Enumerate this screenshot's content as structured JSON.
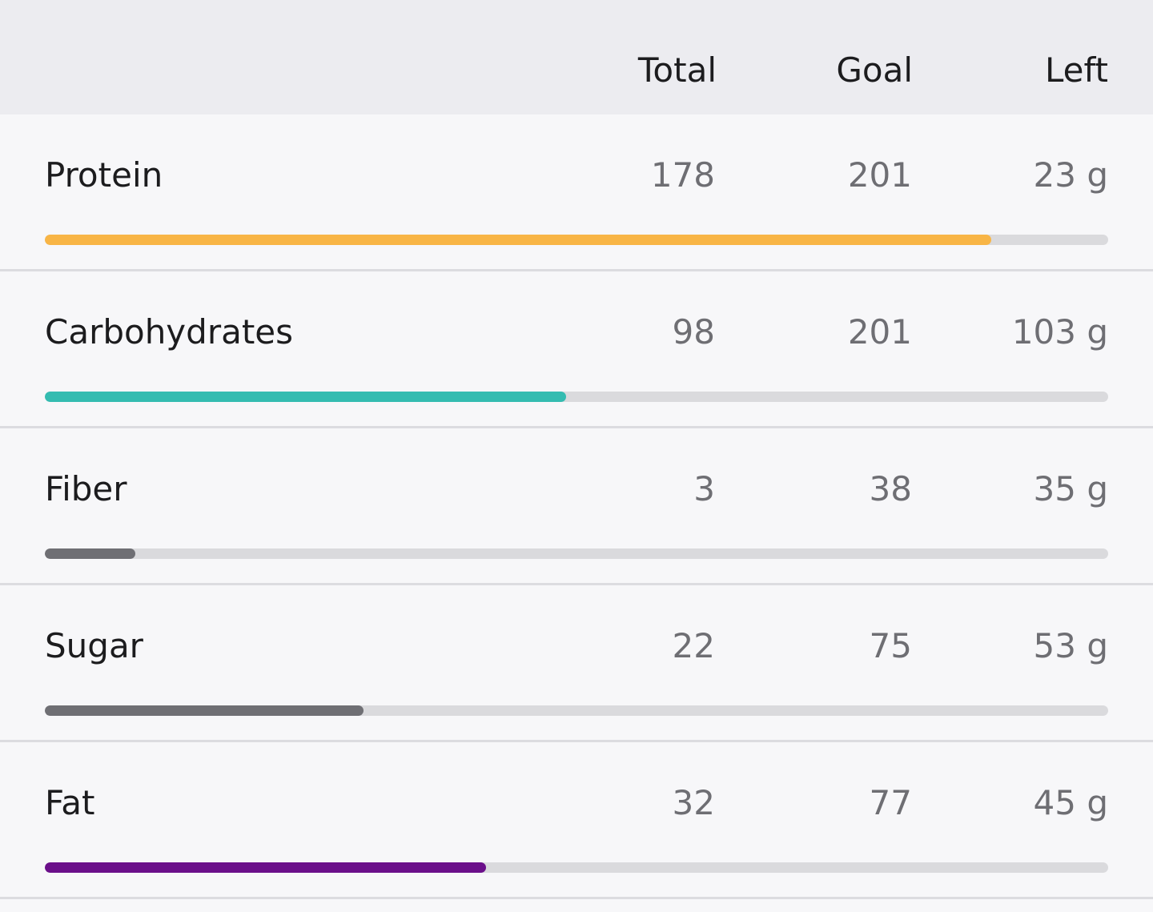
{
  "header": {
    "total_label": "Total",
    "goal_label": "Goal",
    "left_label": "Left"
  },
  "nutrients": [
    {
      "name": "Protein",
      "total": "178",
      "goal": "201",
      "left": "23 g",
      "progress": 0.89,
      "color": "#f8b546"
    },
    {
      "name": "Carbohydrates",
      "total": "98",
      "goal": "201",
      "left": "103 g",
      "progress": 0.49,
      "color": "#34bcb1"
    },
    {
      "name": "Fiber",
      "total": "3",
      "goal": "38",
      "left": "35 g",
      "progress": 0.085,
      "color": "#6f6f74"
    },
    {
      "name": "Sugar",
      "total": "22",
      "goal": "75",
      "left": "53 g",
      "progress": 0.3,
      "color": "#6f6f74"
    },
    {
      "name": "Fat",
      "total": "32",
      "goal": "77",
      "left": "45 g",
      "progress": 0.415,
      "color": "#6b0f8a"
    }
  ]
}
